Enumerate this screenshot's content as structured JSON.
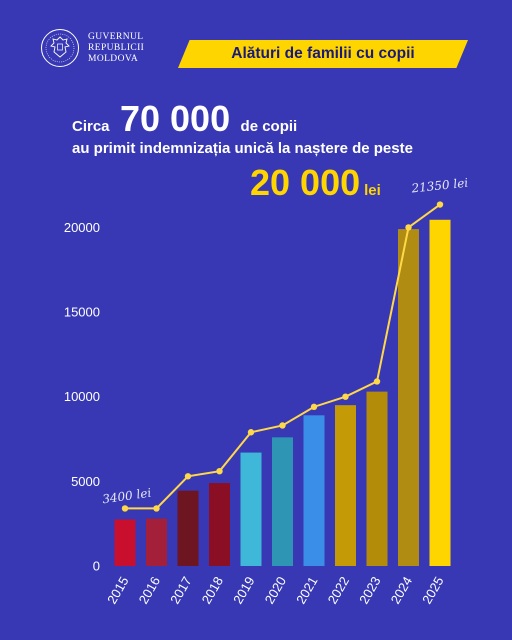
{
  "header": {
    "gov_line1": "GUVERNUL",
    "gov_line2": "REPUBLICII",
    "gov_line3": "MOLDOVA",
    "banner": "Alături de familii cu copii"
  },
  "headline": {
    "prefix": "Circa",
    "count": "70 000",
    "count_suffix": "de copii",
    "line2": "au primit indemnizația unică la naștere de peste",
    "amount": "20 000",
    "amount_unit": "lei"
  },
  "colors": {
    "background": "#3838b4",
    "accent": "#ffd500",
    "line": "#ffd84a"
  },
  "chart_data": {
    "type": "bar",
    "categories": [
      "2015",
      "2016",
      "2017",
      "2018",
      "2019",
      "2020",
      "2021",
      "2022",
      "2023",
      "2024",
      "2025"
    ],
    "series": [
      {
        "values": [
          2750,
          2800,
          4450,
          4900,
          6700,
          7600,
          8900,
          9500,
          10300,
          19900,
          20450
        ],
        "colors": [
          "#c8102e",
          "#a31f3a",
          "#6e1522",
          "#8b0f24",
          "#3fb7d9",
          "#2e95b5",
          "#3a8ee8",
          "#c49a06",
          "#b38c0a",
          "#b08d12",
          "#ffd500"
        ]
      },
      {
        "type": "line",
        "values": [
          3400,
          3400,
          5300,
          5600,
          7900,
          8300,
          9400,
          10000,
          10900,
          20000,
          21350
        ]
      }
    ],
    "yticks": [
      0,
      5000,
      10000,
      15000,
      20000
    ],
    "ylim": [
      0,
      21500
    ],
    "grid": false,
    "annotations": [
      {
        "text": "3400 lei",
        "x": "2015",
        "y": 3400
      },
      {
        "text": "21350 lei",
        "x": "2025",
        "y": 21350
      }
    ]
  }
}
